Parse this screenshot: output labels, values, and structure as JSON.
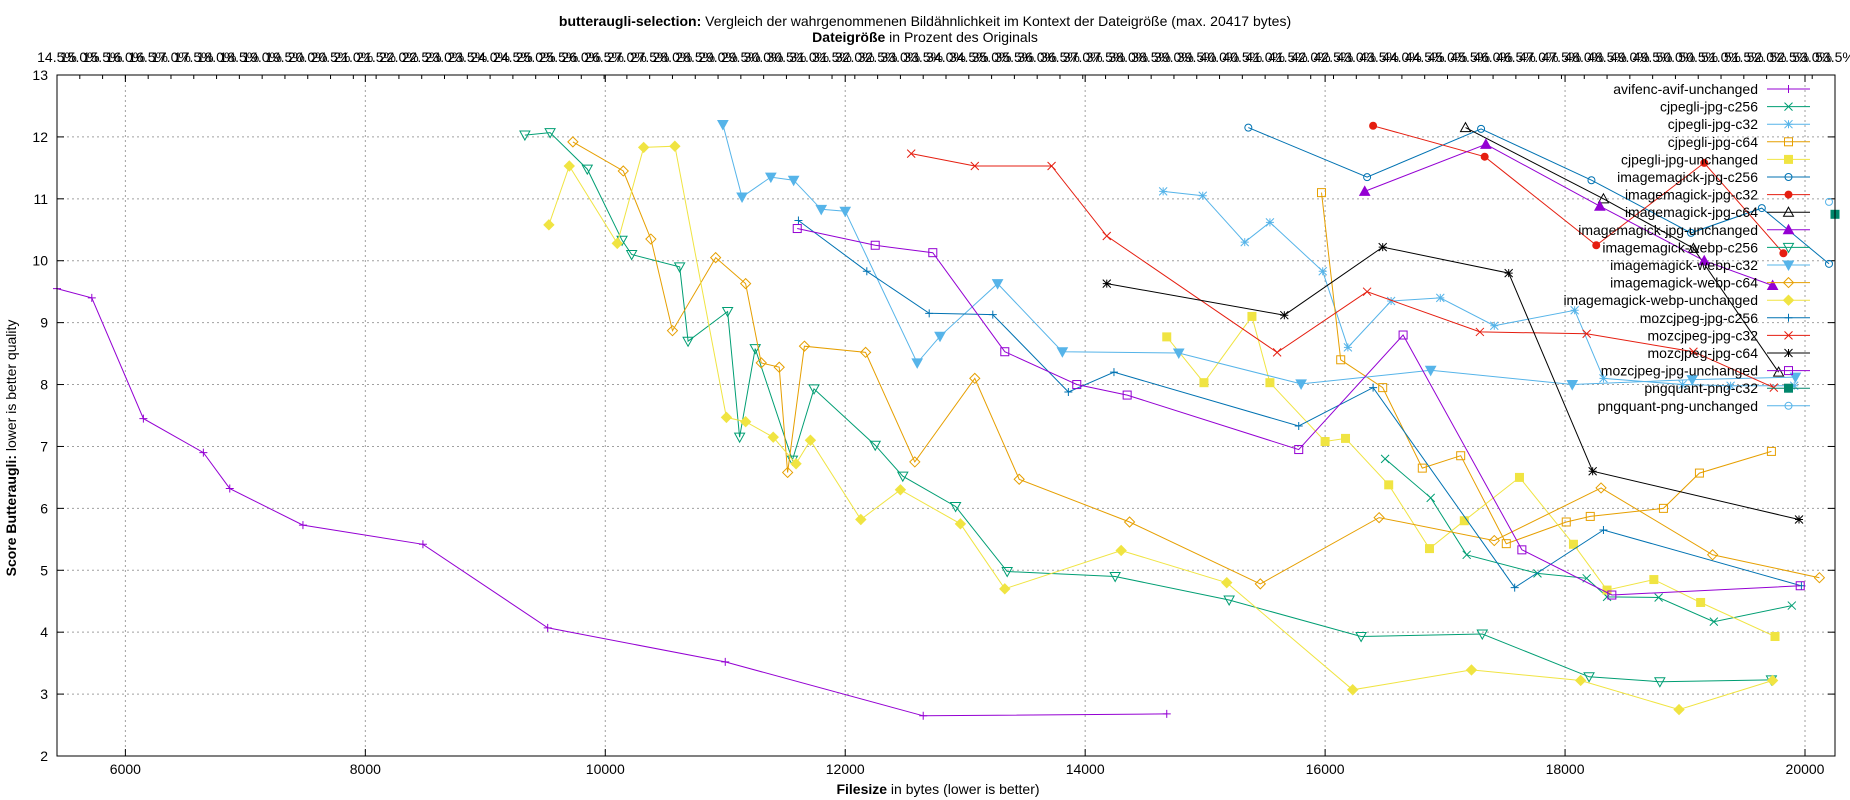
{
  "chart_data": {
    "type": "line",
    "title_bold": "butteraugli-selection:",
    "title_rest": " Vergleich der wahrgenommenen Bildähnlichkeit im Kontext der Dateigröße (max. 20417 bytes)",
    "x2label_bold": "Dateigröße",
    "x2label_rest": " in Prozent des Originals",
    "xlabel_bold": "Filesize",
    "xlabel_rest": " in bytes (lower is better)",
    "ylabel_bold": "Score Butteraugli:",
    "ylabel_rest": " lower is better quality",
    "xlim": [
      5430,
      20250
    ],
    "ylim": [
      2,
      13
    ],
    "x_ticks": [
      "6000",
      "8000",
      "10000",
      "12000",
      "14000",
      "16000",
      "18000",
      "20000"
    ],
    "y_ticks": [
      "2",
      "3",
      "4",
      "5",
      "6",
      "7",
      "8",
      "9",
      "10",
      "11",
      "12",
      "13"
    ],
    "x2_ticks": [
      "14.5%",
      "15.0%",
      "15.5%",
      "16.0%",
      "16.5%",
      "17.0%",
      "17.5%",
      "18.0%",
      "18.5%",
      "19.0%",
      "19.5%",
      "20.0%",
      "20.5%",
      "21.0%",
      "21.5%",
      "22.0%",
      "22.5%",
      "23.0%",
      "23.5%",
      "24.0%",
      "24.5%",
      "25.0%",
      "25.5%",
      "26.0%",
      "26.5%",
      "27.0%",
      "27.5%",
      "28.0%",
      "28.5%",
      "29.0%",
      "29.5%",
      "30.0%",
      "30.5%",
      "31.0%",
      "31.5%",
      "32.0%",
      "32.5%",
      "33.0%",
      "33.5%",
      "34.0%",
      "34.5%",
      "35.0%",
      "35.5%",
      "36.0%",
      "36.5%",
      "37.0%",
      "37.5%",
      "38.0%",
      "38.5%",
      "39.0%",
      "39.5%",
      "40.0%",
      "40.5%",
      "41.0%",
      "41.5%",
      "42.0%",
      "42.5%",
      "43.0%",
      "43.5%",
      "44.0%",
      "44.5%",
      "45.0%",
      "45.5%",
      "46.0%",
      "46.5%",
      "47.0%",
      "47.5%",
      "48.0%",
      "48.5%",
      "49.0%",
      "49.5%",
      "50.0%",
      "50.5%",
      "51.0%",
      "51.5%",
      "52.0%",
      "52.5%",
      "53.0%",
      "53.5%"
    ],
    "grid": true,
    "legend_position": "top-right",
    "series": [
      {
        "name": "avifenc-avif-unchanged",
        "color": "#9400d3",
        "marker": "plus",
        "points": [
          [
            5430,
            9.55
          ],
          [
            5720,
            9.4
          ],
          [
            6150,
            7.45
          ],
          [
            6650,
            6.9
          ],
          [
            6870,
            6.32
          ],
          [
            7480,
            5.73
          ],
          [
            8480,
            5.42
          ],
          [
            9520,
            4.07
          ],
          [
            11000,
            3.52
          ],
          [
            12650,
            2.65
          ],
          [
            14680,
            2.68
          ]
        ]
      },
      {
        "name": "cjpegli-jpg-c256",
        "color": "#009e73",
        "marker": "cross",
        "points": [
          [
            16500,
            6.8
          ],
          [
            16880,
            6.17
          ],
          [
            17180,
            5.25
          ],
          [
            17770,
            4.95
          ],
          [
            18180,
            4.87
          ],
          [
            18350,
            4.57
          ],
          [
            18780,
            4.56
          ],
          [
            19240,
            4.17
          ],
          [
            19890,
            4.43
          ]
        ]
      },
      {
        "name": "cjpegli-jpg-c32",
        "color": "#56b4e9",
        "marker": "star",
        "points": [
          [
            14650,
            11.12
          ],
          [
            14980,
            11.05
          ],
          [
            15330,
            10.3
          ],
          [
            15540,
            10.62
          ],
          [
            15980,
            9.83
          ],
          [
            16190,
            8.6
          ],
          [
            16550,
            9.35
          ],
          [
            16960,
            9.4
          ],
          [
            17410,
            8.95
          ],
          [
            18080,
            9.2
          ],
          [
            18320,
            8.1
          ],
          [
            18980,
            8.0
          ],
          [
            19380,
            7.98
          ],
          [
            19910,
            7.98
          ]
        ]
      },
      {
        "name": "cjpegli-jpg-c64",
        "color": "#e69f00",
        "marker": "square",
        "points": [
          [
            15970,
            11.1
          ],
          [
            16130,
            8.4
          ],
          [
            16480,
            7.95
          ],
          [
            16810,
            6.65
          ],
          [
            17130,
            6.85
          ],
          [
            17510,
            5.43
          ],
          [
            18010,
            5.78
          ],
          [
            18210,
            5.87
          ],
          [
            18820,
            6.0
          ],
          [
            19120,
            6.57
          ],
          [
            19720,
            6.92
          ]
        ]
      },
      {
        "name": "cjpegli-jpg-unchanged",
        "color": "#f0e442",
        "marker": "square-filled",
        "points": [
          [
            14680,
            8.77
          ],
          [
            14990,
            8.03
          ],
          [
            15390,
            9.1
          ],
          [
            15540,
            8.03
          ],
          [
            16000,
            7.08
          ],
          [
            16170,
            7.13
          ],
          [
            16530,
            6.38
          ],
          [
            16870,
            5.35
          ],
          [
            17160,
            5.8
          ],
          [
            17620,
            6.5
          ],
          [
            18070,
            5.42
          ],
          [
            18350,
            4.68
          ],
          [
            18740,
            4.85
          ],
          [
            19130,
            4.48
          ],
          [
            19750,
            3.93
          ]
        ]
      },
      {
        "name": "imagemagick-jpg-c256",
        "color": "#0072b2",
        "marker": "circle",
        "points": [
          [
            15360,
            12.15
          ],
          [
            16350,
            11.35
          ],
          [
            17300,
            12.13
          ],
          [
            18220,
            11.3
          ],
          [
            19050,
            10.45
          ],
          [
            19640,
            10.85
          ],
          [
            20200,
            9.95
          ]
        ]
      },
      {
        "name": "imagemagick-jpg-c32",
        "color": "#e51e10",
        "marker": "circle-filled",
        "points": [
          [
            16400,
            12.18
          ],
          [
            17330,
            11.68
          ],
          [
            18260,
            10.25
          ],
          [
            19160,
            11.58
          ],
          [
            19820,
            10.12
          ]
        ]
      },
      {
        "name": "imagemagick-jpg-c64",
        "color": "#000000",
        "marker": "triangle",
        "points": [
          [
            17170,
            12.15
          ],
          [
            18320,
            11.0
          ],
          [
            19070,
            10.2
          ],
          [
            19780,
            8.2
          ]
        ]
      },
      {
        "name": "imagemagick-jpg-unchanged",
        "color": "#9400d3",
        "marker": "triangle-filled",
        "points": [
          [
            16330,
            11.12
          ],
          [
            17340,
            11.88
          ],
          [
            18290,
            10.88
          ],
          [
            19160,
            10.0
          ],
          [
            19730,
            9.6
          ]
        ]
      },
      {
        "name": "imagemagick-webp-c256",
        "color": "#009e73",
        "marker": "triangle-down",
        "points": [
          [
            9330,
            12.03
          ],
          [
            9540,
            12.07
          ],
          [
            9850,
            11.48
          ],
          [
            10140,
            10.33
          ],
          [
            10220,
            10.1
          ],
          [
            10620,
            9.9
          ],
          [
            10690,
            8.7
          ],
          [
            11020,
            9.18
          ],
          [
            11120,
            7.15
          ],
          [
            11250,
            8.58
          ],
          [
            11560,
            6.78
          ],
          [
            11740,
            7.93
          ],
          [
            12250,
            7.02
          ],
          [
            12480,
            6.52
          ],
          [
            12920,
            6.03
          ],
          [
            13350,
            4.98
          ],
          [
            14250,
            4.9
          ],
          [
            15200,
            4.52
          ],
          [
            16300,
            3.93
          ],
          [
            17310,
            3.97
          ],
          [
            18200,
            3.28
          ],
          [
            18790,
            3.2
          ],
          [
            19720,
            3.23
          ]
        ]
      },
      {
        "name": "imagemagick-webp-c32",
        "color": "#56b4e9",
        "marker": "triangle-down-filled",
        "points": [
          [
            10980,
            12.2
          ],
          [
            11140,
            11.03
          ],
          [
            11380,
            11.35
          ],
          [
            11570,
            11.3
          ],
          [
            11800,
            10.83
          ],
          [
            12000,
            10.8
          ],
          [
            12600,
            8.35
          ],
          [
            12790,
            8.78
          ],
          [
            13270,
            9.63
          ],
          [
            13810,
            8.53
          ],
          [
            14780,
            8.51
          ],
          [
            15800,
            8.01
          ],
          [
            16880,
            8.23
          ],
          [
            18060,
            8.0
          ],
          [
            19060,
            8.08
          ],
          [
            19920,
            8.12
          ]
        ]
      },
      {
        "name": "imagemagick-webp-c64",
        "color": "#e69f00",
        "marker": "diamond",
        "points": [
          [
            9730,
            11.92
          ],
          [
            10150,
            11.45
          ],
          [
            10380,
            10.35
          ],
          [
            10560,
            8.87
          ],
          [
            10920,
            10.05
          ],
          [
            11170,
            9.63
          ],
          [
            11300,
            8.35
          ],
          [
            11450,
            8.28
          ],
          [
            11520,
            6.58
          ],
          [
            11660,
            8.62
          ],
          [
            12170,
            8.52
          ],
          [
            12580,
            6.75
          ],
          [
            13080,
            8.1
          ],
          [
            13450,
            6.47
          ],
          [
            14370,
            5.78
          ],
          [
            15460,
            4.78
          ],
          [
            16450,
            5.85
          ],
          [
            17410,
            5.48
          ],
          [
            18300,
            6.33
          ],
          [
            19230,
            5.25
          ],
          [
            20120,
            4.88
          ]
        ]
      },
      {
        "name": "imagemagick-webp-unchanged",
        "color": "#f0e442",
        "marker": "diamond-filled",
        "points": [
          [
            9530,
            10.58
          ],
          [
            9700,
            11.53
          ],
          [
            10100,
            10.28
          ],
          [
            10320,
            11.83
          ],
          [
            10580,
            11.85
          ],
          [
            11010,
            7.47
          ],
          [
            11170,
            7.4
          ],
          [
            11400,
            7.15
          ],
          [
            11590,
            6.72
          ],
          [
            11710,
            7.1
          ],
          [
            12130,
            5.82
          ],
          [
            12460,
            6.3
          ],
          [
            12960,
            5.75
          ],
          [
            13330,
            4.7
          ],
          [
            14300,
            5.32
          ],
          [
            15180,
            4.8
          ],
          [
            16230,
            3.07
          ],
          [
            17220,
            3.39
          ],
          [
            18130,
            3.22
          ],
          [
            18950,
            2.75
          ],
          [
            19730,
            3.22
          ]
        ]
      },
      {
        "name": "mozcjpeg-jpg-c256",
        "color": "#0072b2",
        "marker": "plus",
        "points": [
          [
            11610,
            10.65
          ],
          [
            12180,
            9.83
          ],
          [
            12700,
            9.15
          ],
          [
            13230,
            9.13
          ],
          [
            13860,
            7.88
          ],
          [
            14240,
            8.2
          ],
          [
            15780,
            7.33
          ],
          [
            16400,
            7.95
          ],
          [
            17580,
            4.72
          ],
          [
            18320,
            5.65
          ],
          [
            19970,
            4.75
          ]
        ]
      },
      {
        "name": "mozcjpeg-jpg-c32",
        "color": "#e51e10",
        "marker": "cross",
        "points": [
          [
            12550,
            11.73
          ],
          [
            13080,
            11.53
          ],
          [
            13720,
            11.53
          ],
          [
            14180,
            10.4
          ],
          [
            15600,
            8.52
          ],
          [
            16350,
            9.5
          ],
          [
            17290,
            8.85
          ],
          [
            18180,
            8.82
          ],
          [
            19070,
            8.53
          ],
          [
            19740,
            7.95
          ]
        ]
      },
      {
        "name": "mozcjpeg-jpg-c64",
        "color": "#000000",
        "marker": "star",
        "points": [
          [
            14180,
            9.63
          ],
          [
            15660,
            9.12
          ],
          [
            16480,
            10.22
          ],
          [
            17530,
            9.8
          ],
          [
            18230,
            6.6
          ],
          [
            19950,
            5.82
          ]
        ]
      },
      {
        "name": "mozcjpeg-jpg-unchanged",
        "color": "#9400d3",
        "marker": "square",
        "points": [
          [
            11600,
            10.52
          ],
          [
            12250,
            10.25
          ],
          [
            12730,
            10.13
          ],
          [
            13330,
            8.53
          ],
          [
            13930,
            8.0
          ],
          [
            14350,
            7.83
          ],
          [
            15780,
            6.95
          ],
          [
            16650,
            8.8
          ],
          [
            17640,
            5.33
          ],
          [
            18390,
            4.6
          ],
          [
            19960,
            4.75
          ]
        ]
      },
      {
        "name": "pngquant-png-c32",
        "color": "#00866b",
        "marker": "square-filled",
        "points": [
          [
            20250,
            10.75
          ]
        ]
      },
      {
        "name": "pngquant-png-unchanged",
        "color": "#56b4e9",
        "marker": "circle",
        "points": [
          [
            20200,
            10.95
          ]
        ]
      }
    ]
  }
}
